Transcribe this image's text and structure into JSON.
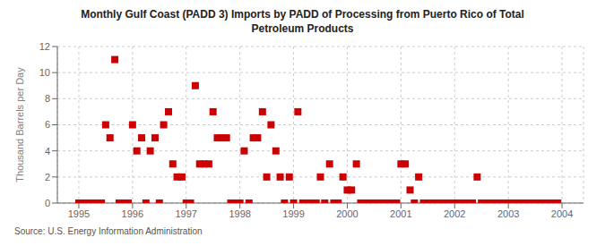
{
  "chart_data": {
    "type": "scatter",
    "title": "Monthly Gulf Coast (PADD 3) Imports by PADD of Processing from Puerto Rico of Total\nPetroleum Products",
    "ylabel": "Thousand Barrels per Day",
    "annotations": [
      "Source: U.S. Energy Information Administration"
    ],
    "color": "#cc0000",
    "marker": "square",
    "grid": true,
    "xlim": [
      1994.6,
      2004.4
    ],
    "ylim": [
      0,
      12
    ],
    "xticks": [
      1995,
      1996,
      1997,
      1998,
      1999,
      2000,
      2001,
      2002,
      2003,
      2004
    ],
    "yticks": [
      0,
      2,
      4,
      6,
      8,
      10,
      12
    ],
    "x": [
      1995.0,
      1995.08,
      1995.17,
      1995.25,
      1995.33,
      1995.42,
      1995.5,
      1995.58,
      1995.67,
      1995.75,
      1995.83,
      1995.92,
      1996.0,
      1996.08,
      1996.17,
      1996.25,
      1996.33,
      1996.42,
      1996.5,
      1996.58,
      1996.67,
      1996.75,
      1996.83,
      1996.92,
      1997.0,
      1997.08,
      1997.17,
      1997.25,
      1997.33,
      1997.42,
      1997.5,
      1997.58,
      1997.67,
      1997.75,
      1997.83,
      1997.92,
      1998.0,
      1998.08,
      1998.17,
      1998.25,
      1998.33,
      1998.42,
      1998.5,
      1998.58,
      1998.67,
      1998.75,
      1998.83,
      1998.92,
      1999.0,
      1999.08,
      1999.17,
      1999.25,
      1999.33,
      1999.42,
      1999.5,
      1999.58,
      1999.67,
      1999.75,
      1999.83,
      1999.92,
      2000.0,
      2000.08,
      2000.17,
      2000.25,
      2000.33,
      2000.42,
      2000.5,
      2000.58,
      2000.67,
      2000.75,
      2000.83,
      2000.92,
      2001.0,
      2001.08,
      2001.17,
      2001.25,
      2001.33,
      2001.42,
      2001.5,
      2001.58,
      2001.67,
      2001.75,
      2001.83,
      2001.92,
      2002.0,
      2002.08,
      2002.17,
      2002.25,
      2002.33,
      2002.42,
      2002.5,
      2002.58,
      2002.67,
      2002.75,
      2002.83,
      2002.92,
      2003.0,
      2003.08,
      2003.17,
      2003.25,
      2003.33,
      2003.42,
      2003.5,
      2003.58,
      2003.67,
      2003.75,
      2003.83,
      2003.92
    ],
    "values": [
      0,
      0,
      0,
      0,
      0,
      0,
      6,
      5,
      11,
      0,
      0,
      0,
      6,
      4,
      5,
      0,
      4,
      5,
      0,
      6,
      7,
      3,
      2,
      2,
      0,
      0,
      9,
      3,
      3,
      3,
      7,
      5,
      5,
      5,
      0,
      0,
      0,
      4,
      0,
      5,
      5,
      7,
      2,
      6,
      4,
      2,
      0,
      2,
      0,
      7,
      0,
      0,
      0,
      0,
      2,
      0,
      3,
      0,
      0,
      2,
      1,
      1,
      3,
      0,
      0,
      0,
      0,
      0,
      0,
      0,
      0,
      0,
      3,
      3,
      1,
      0,
      2,
      0,
      0,
      0,
      0,
      0,
      0,
      0,
      0,
      0,
      0,
      0,
      0,
      2,
      0,
      0,
      0,
      0,
      0,
      0,
      0,
      0,
      0,
      0,
      0,
      0,
      0,
      0,
      0,
      0,
      0,
      0
    ]
  }
}
